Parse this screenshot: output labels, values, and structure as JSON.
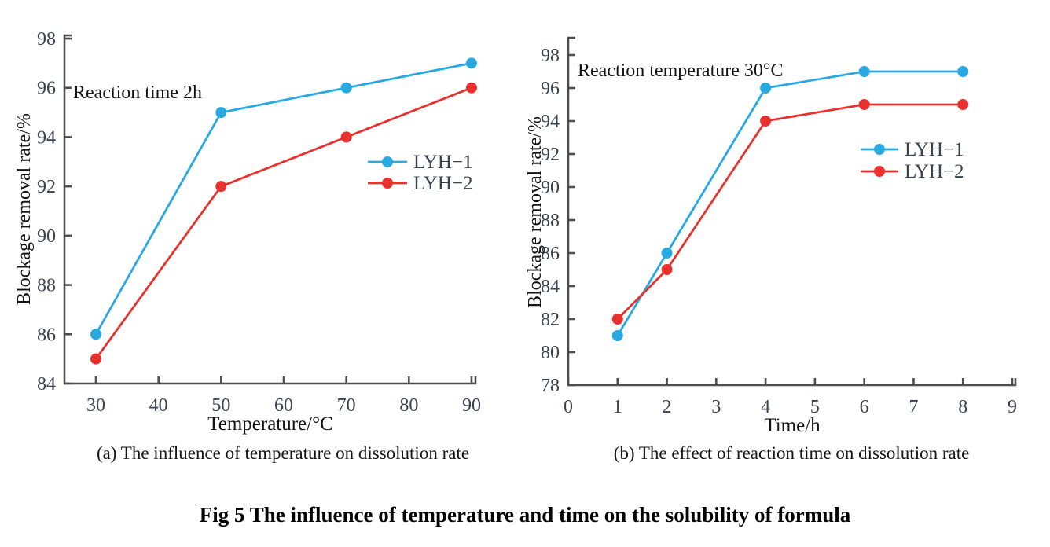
{
  "figure": {
    "title": "Fig 5 The influence of temperature and time on the solubility of formula"
  },
  "colors": {
    "series1": "#29a9e1",
    "series2": "#e8312e",
    "axis": "#4f4f4f",
    "tick_label": "#39434f",
    "text": "#141414"
  },
  "chart_data": [
    {
      "id": "a",
      "type": "line",
      "caption": "(a) The influence of temperature on dissolution rate",
      "annotation": "Reaction time 2h",
      "xlabel": "Temperature/°C",
      "ylabel": "Blockage removal rate/%",
      "xlim": [
        30,
        90
      ],
      "ylim": [
        84,
        98
      ],
      "xticks": [
        30,
        40,
        50,
        60,
        70,
        80,
        90
      ],
      "yticks": [
        84,
        86,
        88,
        90,
        92,
        94,
        96,
        98
      ],
      "grid": false,
      "legend_position": "middle-right",
      "series": [
        {
          "name": "LYH−1",
          "color_key": "series1",
          "x": [
            30,
            50,
            70,
            90
          ],
          "y": [
            86,
            95,
            96,
            97
          ]
        },
        {
          "name": "LYH−2",
          "color_key": "series2",
          "x": [
            30,
            50,
            70,
            90
          ],
          "y": [
            85,
            92,
            94,
            96
          ]
        }
      ]
    },
    {
      "id": "b",
      "type": "line",
      "caption": "(b) The effect of reaction time on dissolution rate",
      "annotation": "Reaction temperature 30°C",
      "xlabel": "Time/h",
      "ylabel": "Blockage removal rate/%",
      "xlim": [
        0,
        9
      ],
      "ylim": [
        78,
        98
      ],
      "xticks": [
        0,
        1,
        2,
        3,
        4,
        5,
        6,
        7,
        8,
        9
      ],
      "yticks": [
        78,
        80,
        82,
        84,
        86,
        88,
        90,
        92,
        94,
        96,
        98
      ],
      "grid": false,
      "legend_position": "middle-right",
      "series": [
        {
          "name": "LYH−1",
          "color_key": "series1",
          "x": [
            1,
            2,
            4,
            6,
            8
          ],
          "y": [
            81,
            86,
            96,
            97,
            97
          ]
        },
        {
          "name": "LYH−2",
          "color_key": "series2",
          "x": [
            1,
            2,
            4,
            6,
            8
          ],
          "y": [
            82,
            85,
            94,
            95,
            95
          ]
        }
      ]
    }
  ]
}
